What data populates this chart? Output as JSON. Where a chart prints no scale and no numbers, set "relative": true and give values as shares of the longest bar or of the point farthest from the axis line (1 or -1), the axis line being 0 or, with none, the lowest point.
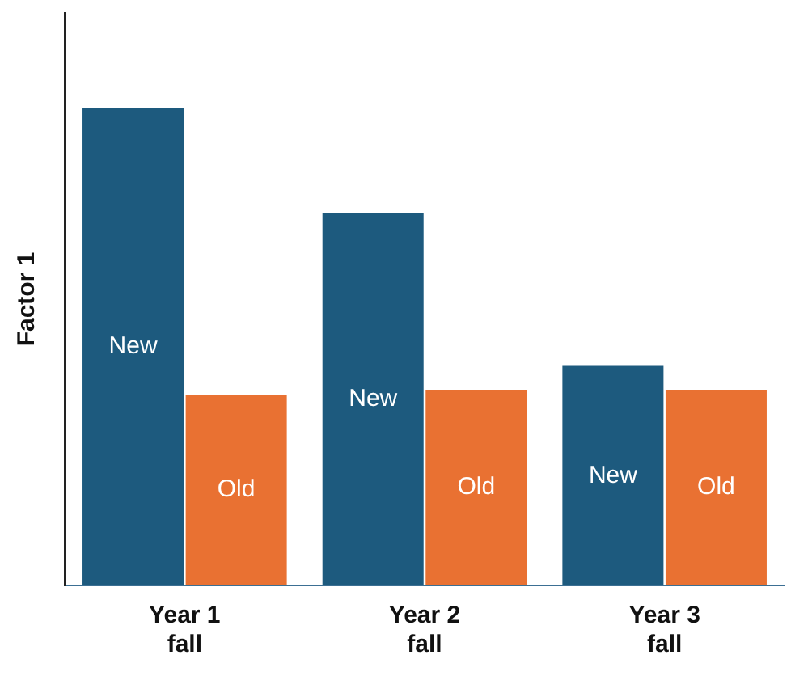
{
  "chart_data": {
    "type": "bar",
    "ylabel": "Factor 1",
    "relative": true,
    "categories": [
      "Year 1 fall",
      "Year 2 fall",
      "Year 3 fall"
    ],
    "series": [
      {
        "name": "New",
        "color": "#1d5a7e",
        "values": [
          1,
          0.78,
          0.46
        ]
      },
      {
        "name": "Old",
        "color": "#e97132",
        "values": [
          0.4,
          0.41,
          0.41
        ]
      }
    ],
    "grid": false,
    "legend": false
  }
}
